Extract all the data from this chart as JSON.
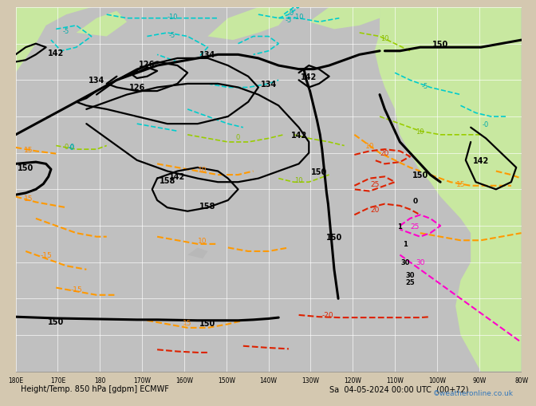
{
  "bg_ocean": "#c0c0c0",
  "bg_land_green": "#c8e8a0",
  "bg_land_gray": "#b8b8b8",
  "grid_color": "#d0d0d0",
  "bottom_bg": "#d4c8b0",
  "title_left": "Height/Temp. 850 hPa [gdpm] ECMWF",
  "title_right": "Sa  04-05-2024 00:00 UTC  (00+72)",
  "copyright": "©weatheronline.co.uk",
  "lon_labels": [
    "180E",
    "170E",
    "180",
    "170W",
    "160W",
    "150W",
    "140W",
    "130W",
    "120W",
    "110W",
    "100W",
    "90W",
    "80W"
  ]
}
